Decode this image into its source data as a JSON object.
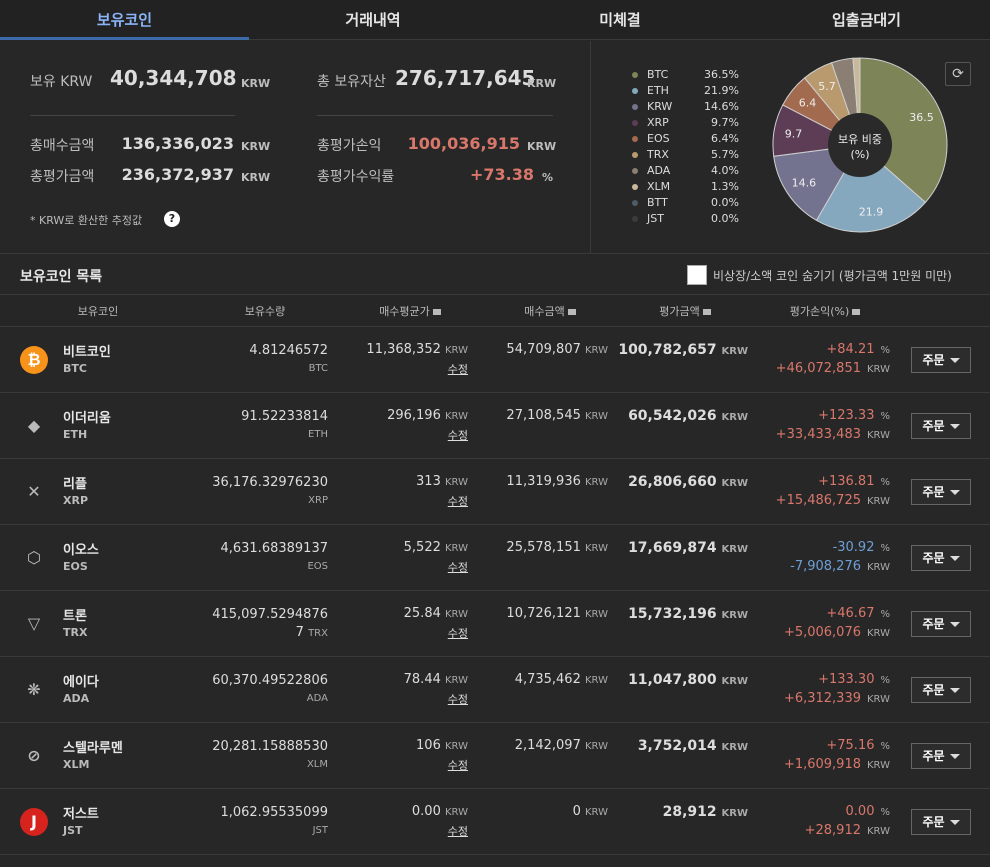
{
  "tabs": [
    {
      "label": "보유코인",
      "active": true
    },
    {
      "label": "거래내역",
      "active": false
    },
    {
      "label": "미체결",
      "active": false
    },
    {
      "label": "입출금대기",
      "active": false
    }
  ],
  "summary": {
    "krw_label": "보유 KRW",
    "krw_value": "40,344,708",
    "total_label": "총 보유자산",
    "total_value": "276,717,645",
    "unit": "KRW",
    "buy_label": "총매수금액",
    "buy_value": "136,336,023",
    "eval_label": "총평가금액",
    "eval_value": "236,372,937",
    "pnl_label": "총평가손익",
    "pnl_value": "100,036,915",
    "rate_label": "총평가수익률",
    "rate_value": "+73.38",
    "rate_unit": "%",
    "note": "* KRW로 환산한 추정값",
    "help_icon": "?"
  },
  "chart_data": {
    "type": "pie",
    "center_label": "보유 비중\n(%)",
    "center_line1": "보유 비중",
    "center_line2": "(%)",
    "slices": [
      {
        "name": "BTC",
        "value": 36.5,
        "pct": "36.5%",
        "color": "#7d8458"
      },
      {
        "name": "ETH",
        "value": 21.9,
        "pct": "21.9%",
        "color": "#86a8bf"
      },
      {
        "name": "KRW",
        "value": 14.6,
        "pct": "14.6%",
        "color": "#74738f"
      },
      {
        "name": "XRP",
        "value": 9.7,
        "pct": "9.7%",
        "color": "#5c3d55"
      },
      {
        "name": "EOS",
        "value": 6.4,
        "pct": "6.4%",
        "color": "#a26a4e"
      },
      {
        "name": "TRX",
        "value": 5.7,
        "pct": "5.7%",
        "color": "#b99a6f"
      },
      {
        "name": "ADA",
        "value": 4.0,
        "pct": "4.0%",
        "color": "#8b7f74"
      },
      {
        "name": "XLM",
        "value": 1.3,
        "pct": "1.3%",
        "color": "#c8b99b"
      },
      {
        "name": "BTT",
        "value": 0.0,
        "pct": "0.0%",
        "color": "#4f5c67"
      },
      {
        "name": "JST",
        "value": 0.0,
        "pct": "0.0%",
        "color": "#3c3c3c"
      }
    ],
    "slice_labels": [
      "36.5",
      "21.9",
      "14.6",
      "9.7",
      "6.4",
      "5.7"
    ]
  },
  "list": {
    "title": "보유코인 목록",
    "hide_label": "비상장/소액 코인 숨기기 (평가금액 1만원 미만)",
    "columns": [
      "보유코인",
      "보유수량",
      "매수평균가",
      "매수금액",
      "평가금액",
      "평가손익(%)"
    ],
    "edit_label": "수정",
    "order_label": "주문",
    "krw": "KRW",
    "pct_unit": "%"
  },
  "rows": [
    {
      "name": "비트코인",
      "sym": "BTC",
      "amount": "4.81246572",
      "avg": "11,368,352",
      "buy": "54,709,807",
      "eval": "100,782,657",
      "pct": "+84.21",
      "pnl": "+46,072,851",
      "color": "#f7931a",
      "icon": "bitcoin-icon",
      "glyph": "₿",
      "up": true
    },
    {
      "name": "이더리움",
      "sym": "ETH",
      "amount": "91.52233814",
      "avg": "296,196",
      "buy": "27,108,545",
      "eval": "60,542,026",
      "pct": "+123.33",
      "pnl": "+33,433,483",
      "color": "#272727",
      "icon": "ethereum-icon",
      "glyph": "◆",
      "up": true
    },
    {
      "name": "리플",
      "sym": "XRP",
      "amount": "36,176.32976230",
      "avg": "313",
      "buy": "11,319,936",
      "eval": "26,806,660",
      "pct": "+136.81",
      "pnl": "+15,486,725",
      "color": "#272727",
      "icon": "ripple-icon",
      "glyph": "✕",
      "up": true
    },
    {
      "name": "이오스",
      "sym": "EOS",
      "amount": "4,631.68389137",
      "avg": "5,522",
      "buy": "25,578,151",
      "eval": "17,669,874",
      "pct": "-30.92",
      "pnl": "-7,908,276",
      "color": "#272727",
      "icon": "eos-icon",
      "glyph": "⬡",
      "up": false
    },
    {
      "name": "트론",
      "sym": "TRX",
      "amount": "415,097.5294876",
      "amount2": "7",
      "avg": "25.84",
      "buy": "10,726,121",
      "eval": "15,732,196",
      "pct": "+46.67",
      "pnl": "+5,006,076",
      "color": "#272727",
      "icon": "tron-icon",
      "glyph": "▽",
      "up": true
    },
    {
      "name": "에이다",
      "sym": "ADA",
      "amount": "60,370.49522806",
      "avg": "78.44",
      "buy": "4,735,462",
      "eval": "11,047,800",
      "pct": "+133.30",
      "pnl": "+6,312,339",
      "color": "#272727",
      "icon": "cardano-icon",
      "glyph": "❋",
      "up": true
    },
    {
      "name": "스텔라루멘",
      "sym": "XLM",
      "amount": "20,281.15888530",
      "avg": "106",
      "buy": "2,142,097",
      "eval": "3,752,014",
      "pct": "+75.16",
      "pnl": "+1,609,918",
      "color": "#272727",
      "icon": "stellar-icon",
      "glyph": "⊘",
      "up": true
    },
    {
      "name": "저스트",
      "sym": "JST",
      "amount": "1,062.95535099",
      "avg": "0.00",
      "buy": "0",
      "eval": "28,912",
      "pct": "0.00",
      "pnl": "+28,912",
      "color": "#d7231e",
      "icon": "just-icon",
      "glyph": "J",
      "up": true
    }
  ]
}
